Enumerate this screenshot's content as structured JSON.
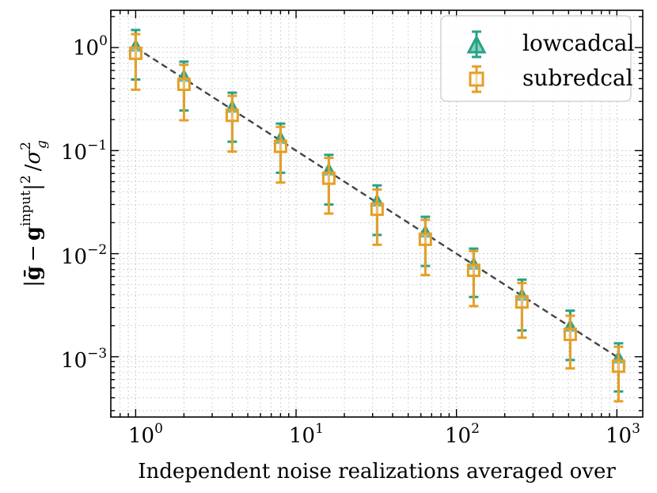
{
  "chart_data": {
    "type": "scatter",
    "xscale": "log",
    "yscale": "log",
    "xlim": [
      0.7,
      1450
    ],
    "ylim": [
      0.00026,
      2.3
    ],
    "xlabel": "Independent noise realizations averaged over",
    "ylabel": "|ḡ − g^input|² / σ_g²",
    "ylabel_parts": {
      "open_bar": "|",
      "gbar": "ḡ",
      "minus": "−",
      "g": "g",
      "sup_input": "input",
      "close_bar": "|",
      "sup_2": "2",
      "slash": "/",
      "sigma": "σ",
      "sup_sigma": "2",
      "sub_sigma": "g"
    },
    "xticks": [
      {
        "value": 1,
        "base": "10",
        "exp": "0"
      },
      {
        "value": 10,
        "base": "10",
        "exp": "1"
      },
      {
        "value": 100,
        "base": "10",
        "exp": "2"
      },
      {
        "value": 1000,
        "base": "10",
        "exp": "3"
      }
    ],
    "yticks": [
      {
        "value": 1,
        "base": "10",
        "exp": "0"
      },
      {
        "value": 0.1,
        "base": "10",
        "exp": "−1"
      },
      {
        "value": 0.01,
        "base": "10",
        "exp": "−2"
      },
      {
        "value": 0.001,
        "base": "10",
        "exp": "−3"
      }
    ],
    "grid": true,
    "legend_position": "top-right",
    "reference_line": {
      "name": "1/N",
      "style": "dashed",
      "color": "#444444",
      "x": [
        1,
        1024
      ],
      "y": [
        1.0,
        0.000977
      ]
    },
    "series": [
      {
        "name": "lowcadcal",
        "marker": "triangle",
        "color": "#26a386",
        "x": [
          1,
          2,
          4,
          8,
          16,
          32,
          64,
          128,
          256,
          512,
          1024
        ],
        "y": [
          1.02,
          0.52,
          0.26,
          0.13,
          0.064,
          0.032,
          0.016,
          0.0078,
          0.0039,
          0.00195,
          0.00096
        ],
        "yerr_low": [
          0.49,
          0.245,
          0.122,
          0.061,
          0.03,
          0.0152,
          0.0076,
          0.0038,
          0.0018,
          0.00093,
          0.00046
        ],
        "yerr_high": [
          1.48,
          0.73,
          0.365,
          0.183,
          0.091,
          0.046,
          0.0228,
          0.0112,
          0.0056,
          0.0028,
          0.00135
        ]
      },
      {
        "name": "subredcal",
        "marker": "square",
        "color": "#e69f27",
        "x": [
          1,
          2,
          4,
          8,
          16,
          32,
          64,
          128,
          256,
          512,
          1024
        ],
        "y": [
          0.88,
          0.44,
          0.22,
          0.11,
          0.054,
          0.027,
          0.0138,
          0.0069,
          0.0034,
          0.00165,
          0.00081
        ],
        "yerr_low": [
          0.39,
          0.197,
          0.098,
          0.049,
          0.0245,
          0.0122,
          0.0062,
          0.0031,
          0.00153,
          0.00077,
          0.00037
        ],
        "yerr_high": [
          1.35,
          0.68,
          0.34,
          0.17,
          0.085,
          0.042,
          0.0213,
          0.0106,
          0.0052,
          0.0025,
          0.00125
        ]
      }
    ]
  }
}
